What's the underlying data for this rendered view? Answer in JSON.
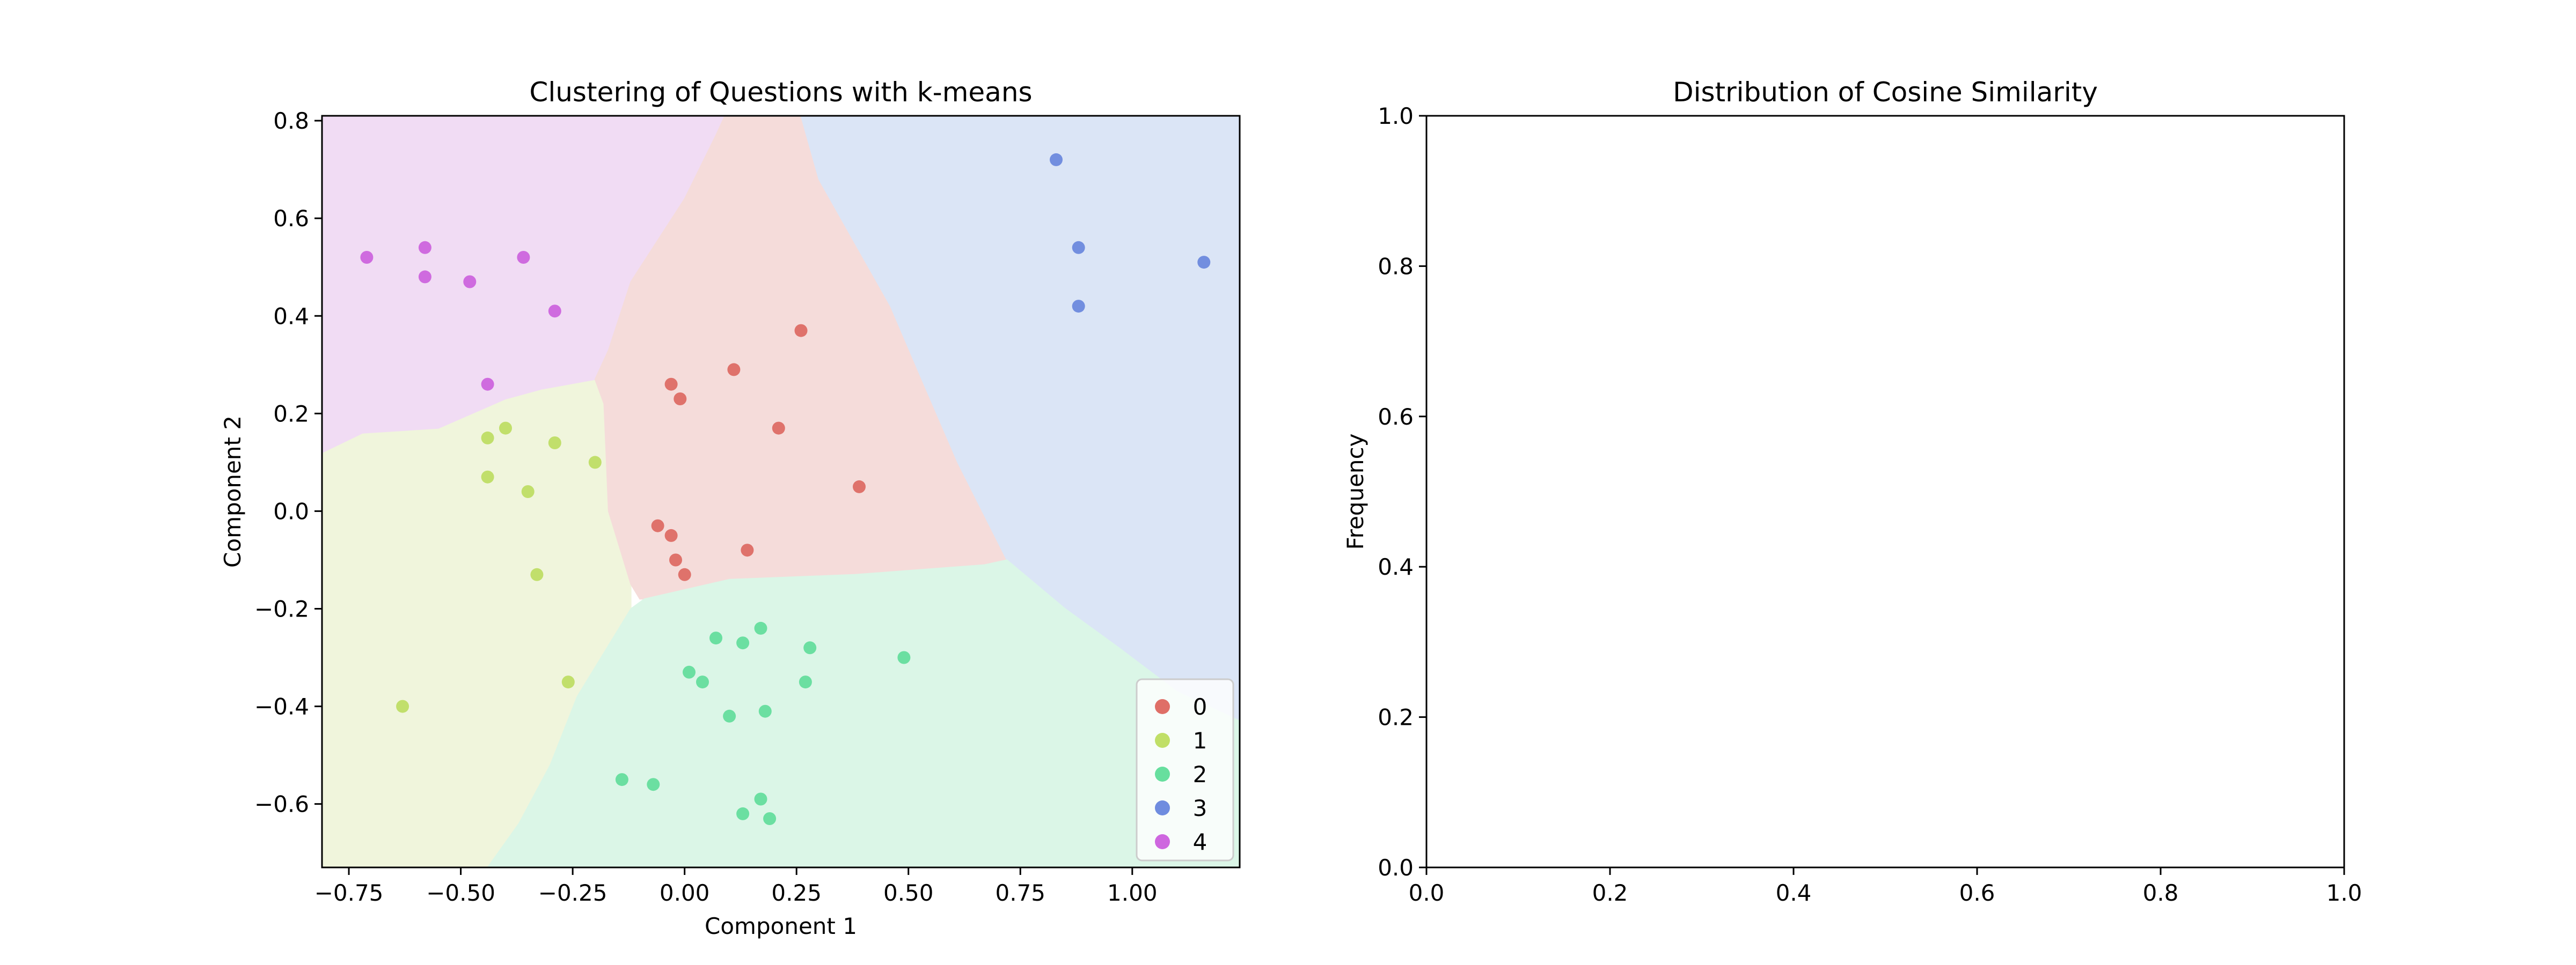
{
  "chart_data": [
    {
      "type": "scatter",
      "title": "Clustering of Questions with k-means",
      "xlabel": "Component 1",
      "ylabel": "Component 2",
      "xlim": [
        -0.81,
        1.24
      ],
      "ylim": [
        -0.73,
        0.81
      ],
      "xticks": [
        -0.75,
        -0.5,
        -0.25,
        0.0,
        0.25,
        0.5,
        0.75,
        1.0
      ],
      "xtick_labels": [
        "−0.75",
        "−0.50",
        "−0.25",
        "0.00",
        "0.25",
        "0.50",
        "0.75",
        "1.00"
      ],
      "yticks": [
        -0.6,
        -0.4,
        -0.2,
        0.0,
        0.2,
        0.4,
        0.6,
        0.8
      ],
      "ytick_labels": [
        "−0.6",
        "−0.4",
        "−0.2",
        "0.0",
        "0.2",
        "0.4",
        "0.6",
        "0.8"
      ],
      "legend_position": "lower-right",
      "grid": false,
      "regions": [
        {
          "cluster": "1",
          "color": "#f0f5dc",
          "polygon": [
            [
              -0.81,
              -0.73
            ],
            [
              -0.81,
              0.12
            ],
            [
              -0.72,
              0.16
            ],
            [
              -0.55,
              0.17
            ],
            [
              -0.4,
              0.23
            ],
            [
              -0.32,
              0.25
            ],
            [
              -0.2,
              0.27
            ],
            [
              -0.18,
              0.22
            ],
            [
              -0.17,
              0.0
            ],
            [
              -0.12,
              -0.15
            ],
            [
              -0.12,
              -0.2
            ],
            [
              -0.24,
              -0.38
            ],
            [
              -0.3,
              -0.52
            ],
            [
              -0.37,
              -0.64
            ],
            [
              -0.44,
              -0.73
            ]
          ]
        },
        {
          "cluster": "4",
          "color": "#f1dcf4",
          "polygon": [
            [
              -0.81,
              0.81
            ],
            [
              0.09,
              0.81
            ],
            [
              0.07,
              0.77
            ],
            [
              0.0,
              0.64
            ],
            [
              -0.12,
              0.47
            ],
            [
              -0.17,
              0.33
            ],
            [
              -0.2,
              0.27
            ],
            [
              -0.32,
              0.25
            ],
            [
              -0.4,
              0.23
            ],
            [
              -0.55,
              0.17
            ],
            [
              -0.72,
              0.16
            ],
            [
              -0.81,
              0.12
            ]
          ]
        },
        {
          "cluster": "0",
          "color": "#f5dcda",
          "polygon": [
            [
              0.09,
              0.81
            ],
            [
              0.26,
              0.81
            ],
            [
              0.3,
              0.68
            ],
            [
              0.38,
              0.55
            ],
            [
              0.46,
              0.42
            ],
            [
              0.53,
              0.27
            ],
            [
              0.61,
              0.1
            ],
            [
              0.72,
              -0.1
            ],
            [
              0.67,
              -0.11
            ],
            [
              0.38,
              -0.13
            ],
            [
              0.1,
              -0.14
            ],
            [
              -0.09,
              -0.18
            ],
            [
              -0.1,
              -0.18
            ],
            [
              -0.12,
              -0.15
            ],
            [
              -0.17,
              0.0
            ],
            [
              -0.18,
              0.22
            ],
            [
              -0.2,
              0.27
            ],
            [
              -0.17,
              0.33
            ],
            [
              -0.12,
              0.47
            ],
            [
              0.0,
              0.64
            ],
            [
              0.07,
              0.77
            ]
          ]
        },
        {
          "cluster": "3",
          "color": "#dbe5f6",
          "polygon": [
            [
              0.26,
              0.81
            ],
            [
              1.24,
              0.81
            ],
            [
              1.24,
              -0.43
            ],
            [
              1.1,
              -0.37
            ],
            [
              0.97,
              -0.28
            ],
            [
              0.85,
              -0.2
            ],
            [
              0.72,
              -0.1
            ],
            [
              0.61,
              0.1
            ],
            [
              0.53,
              0.27
            ],
            [
              0.46,
              0.42
            ],
            [
              0.38,
              0.55
            ],
            [
              0.3,
              0.68
            ]
          ]
        },
        {
          "cluster": "2",
          "color": "#dbf6e7",
          "polygon": [
            [
              -0.44,
              -0.73
            ],
            [
              1.24,
              -0.73
            ],
            [
              1.24,
              -0.43
            ],
            [
              1.1,
              -0.37
            ],
            [
              0.97,
              -0.28
            ],
            [
              0.85,
              -0.2
            ],
            [
              0.72,
              -0.1
            ],
            [
              0.67,
              -0.11
            ],
            [
              0.38,
              -0.13
            ],
            [
              0.1,
              -0.14
            ],
            [
              -0.09,
              -0.18
            ],
            [
              -0.12,
              -0.2
            ],
            [
              -0.24,
              -0.38
            ],
            [
              -0.3,
              -0.52
            ],
            [
              -0.37,
              -0.64
            ]
          ]
        }
      ],
      "series": [
        {
          "name": "0",
          "color": "#db5f57",
          "x": [
            0.26,
            0.11,
            -0.03,
            -0.01,
            0.21,
            0.39,
            -0.06,
            -0.03,
            0.14,
            -0.02,
            0.0
          ],
          "y": [
            0.37,
            0.29,
            0.26,
            0.23,
            0.17,
            0.05,
            -0.03,
            -0.05,
            -0.08,
            -0.1,
            -0.13
          ]
        },
        {
          "name": "1",
          "color": "#b9db57",
          "x": [
            -0.44,
            -0.4,
            -0.29,
            -0.2,
            -0.44,
            -0.35,
            -0.33,
            -0.26,
            -0.63
          ],
          "y": [
            0.15,
            0.17,
            0.14,
            0.1,
            0.07,
            0.04,
            -0.13,
            -0.35,
            -0.4
          ]
        },
        {
          "name": "2",
          "color": "#57db94",
          "x": [
            0.17,
            0.07,
            0.13,
            0.28,
            0.49,
            0.01,
            0.04,
            0.27,
            0.18,
            0.1,
            -0.14,
            -0.07,
            0.17,
            0.13,
            0.19
          ],
          "y": [
            -0.24,
            -0.26,
            -0.27,
            -0.28,
            -0.3,
            -0.33,
            -0.35,
            -0.35,
            -0.41,
            -0.42,
            -0.55,
            -0.56,
            -0.59,
            -0.62,
            -0.63
          ]
        },
        {
          "name": "3",
          "color": "#5f7fdb",
          "x": [
            0.83,
            0.88,
            1.16,
            0.88
          ],
          "y": [
            0.72,
            0.54,
            0.51,
            0.42
          ]
        },
        {
          "name": "4",
          "color": "#c957db",
          "x": [
            -0.71,
            -0.58,
            -0.36,
            -0.58,
            -0.48,
            -0.29,
            -0.44
          ],
          "y": [
            0.52,
            0.54,
            0.52,
            0.48,
            0.47,
            0.41,
            0.26
          ]
        }
      ]
    },
    {
      "type": "bar",
      "title": "Distribution of Cosine Similarity",
      "xlabel": "",
      "ylabel": "Frequency",
      "xlim": [
        0,
        1
      ],
      "ylim": [
        0,
        1
      ],
      "xticks": [
        0.0,
        0.2,
        0.4,
        0.6,
        0.8,
        1.0
      ],
      "xtick_labels": [
        "0.0",
        "0.2",
        "0.4",
        "0.6",
        "0.8",
        "1.0"
      ],
      "yticks": [
        0.0,
        0.2,
        0.4,
        0.6,
        0.8,
        1.0
      ],
      "ytick_labels": [
        "0.0",
        "0.2",
        "0.4",
        "0.6",
        "0.8",
        "1.0"
      ],
      "grid": false,
      "values": []
    }
  ]
}
